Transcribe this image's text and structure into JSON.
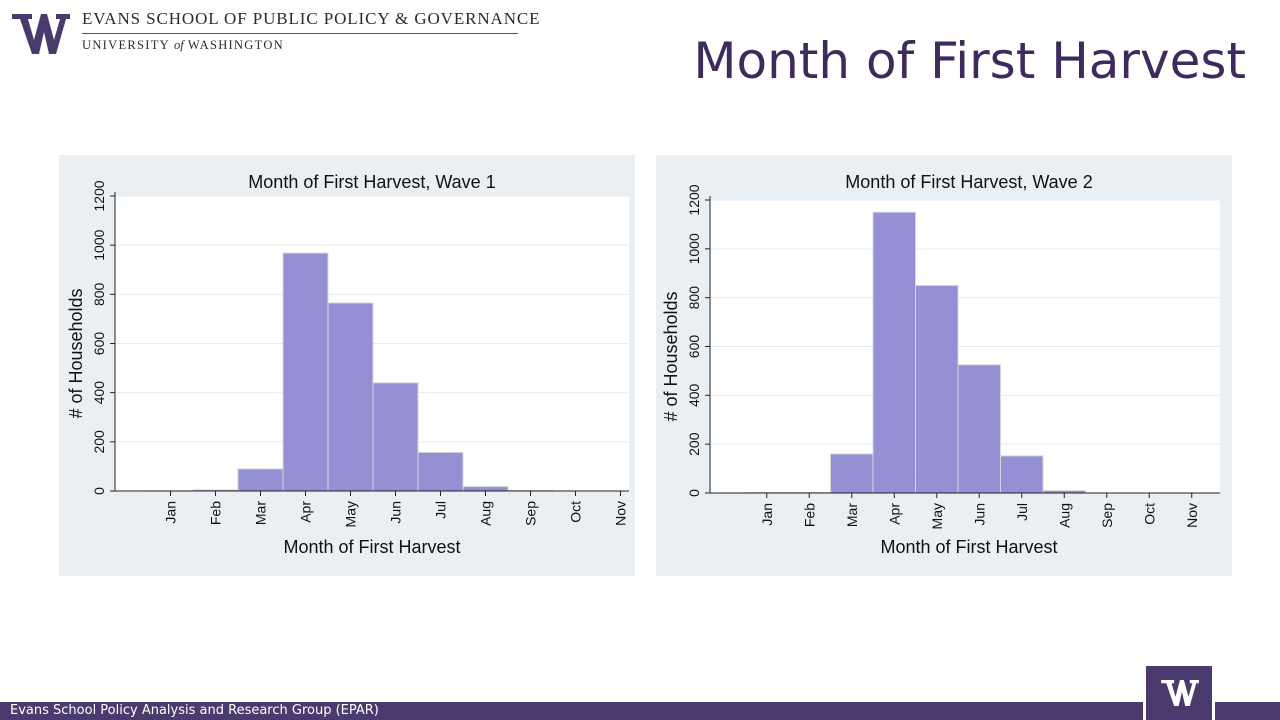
{
  "header": {
    "school_line1": "EVANS SCHOOL OF PUBLIC POLICY & GOVERNANCE",
    "school_line2_pre": "UNIVERSITY ",
    "school_line2_of": "of",
    "school_line2_post": " WASHINGTON",
    "slide_title": "Month of First Harvest"
  },
  "footer": {
    "text": "Evans School Policy Analysis and Research Group (EPAR)"
  },
  "colors": {
    "brand_purple": "#4b3a6e",
    "title_purple": "#3f2a5e",
    "bar_fill": "#9590d3",
    "panel_bg": "#e9eff2"
  },
  "icons": {
    "logo": "uw-w-logo-icon",
    "badge": "uw-w-badge-icon"
  },
  "chart_data": [
    {
      "type": "bar",
      "title": "Month of First Harvest, Wave 1",
      "xlabel": "Month of First Harvest",
      "ylabel": "# of Households",
      "categories": [
        "Jan",
        "Feb",
        "Mar",
        "Apr",
        "May",
        "Jun",
        "Jul",
        "Aug",
        "Sep",
        "Oct",
        "Nov"
      ],
      "values": [
        1,
        5,
        90,
        968,
        765,
        440,
        157,
        18,
        3,
        0,
        0
      ],
      "ylim": [
        0,
        1200
      ],
      "yticks": [
        0,
        200,
        400,
        600,
        800,
        1000,
        1200
      ],
      "grid": true,
      "legend": "none"
    },
    {
      "type": "bar",
      "title": "Month of First Harvest, Wave 2",
      "xlabel": "Month of First Harvest",
      "ylabel": "# of Households",
      "categories": [
        "Jan",
        "Feb",
        "Mar",
        "Apr",
        "May",
        "Jun",
        "Jul",
        "Aug",
        "Sep",
        "Oct",
        "Nov"
      ],
      "values": [
        2,
        2,
        160,
        1150,
        850,
        525,
        152,
        10,
        0,
        0,
        0
      ],
      "ylim": [
        0,
        1200
      ],
      "yticks": [
        0,
        200,
        400,
        600,
        800,
        1000,
        1200
      ],
      "grid": true,
      "legend": "none"
    }
  ]
}
